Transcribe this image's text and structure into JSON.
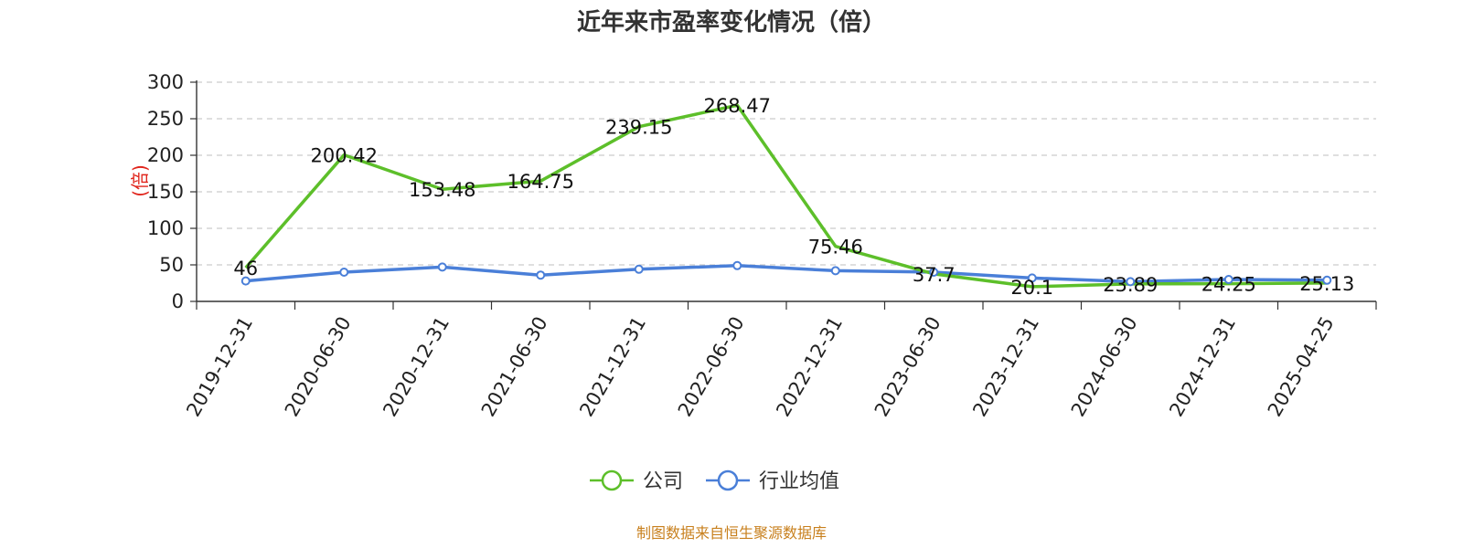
{
  "title": "近年来市盈率变化情况（倍）",
  "source": "制图数据来自恒生聚源数据库",
  "colors": {
    "company": "#5dbf2a",
    "industry": "#4a7fd8",
    "ylabel": "#e0241b",
    "source": "#c8801e"
  },
  "chart_data": {
    "type": "line",
    "title": "近年来市盈率变化情况（倍）",
    "ylabel": "(倍)",
    "xlabel": "",
    "ylim": [
      0,
      300
    ],
    "yticks": [
      0,
      50,
      100,
      150,
      200,
      250,
      300
    ],
    "grid": true,
    "legend_position": "bottom-center",
    "categories": [
      "2019-12-31",
      "2020-06-30",
      "2020-12-31",
      "2021-06-30",
      "2021-12-31",
      "2022-06-30",
      "2022-12-31",
      "2023-06-30",
      "2023-12-31",
      "2024-06-30",
      "2024-12-31",
      "2025-04-25"
    ],
    "series": [
      {
        "name": "公司",
        "values": [
          46,
          200.42,
          153.48,
          164.75,
          239.15,
          268.47,
          75.46,
          37.7,
          20.1,
          23.89,
          24.25,
          25.13
        ],
        "labels": [
          "46",
          "200.42",
          "153.48",
          "164.75",
          "239.15",
          "268.47",
          "75.46",
          "37.7",
          "20.1",
          "23.89",
          "24.25",
          "25.13"
        ]
      },
      {
        "name": "行业均值",
        "values": [
          28,
          40,
          47,
          36,
          44,
          49,
          42,
          40,
          32,
          27,
          30,
          29
        ]
      }
    ]
  }
}
